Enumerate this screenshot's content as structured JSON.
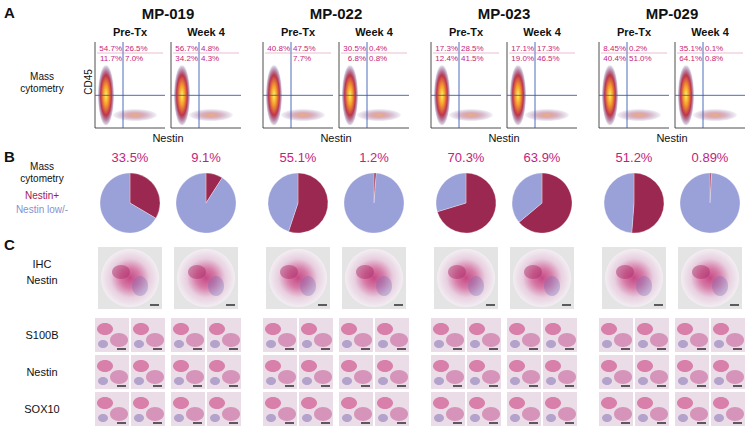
{
  "header": {
    "patients": [
      "MP-019",
      "MP-022",
      "MP-023",
      "MP-029"
    ],
    "timepoints": [
      "Pre-Tx",
      "Week 4"
    ]
  },
  "panel_a": {
    "label": "A",
    "row_label": "Mass\ncytometry",
    "y_axis": "CD45",
    "x_axis": "Nestin",
    "quadrants": [
      [
        [
          "54.7%",
          "26.5%",
          "11.7%",
          "7.0%"
        ],
        [
          "56.7%",
          "4.8%",
          "34.2%",
          "4.3%"
        ]
      ],
      [
        [
          "40.8%",
          "47.5%",
          null,
          "7.7%"
        ],
        [
          "30.5%",
          "0.4%",
          "6.8%",
          "0.8%"
        ]
      ],
      [
        [
          "17.3%",
          "28.5%",
          "12.4%",
          "41.5%"
        ],
        [
          "17.1%",
          "17.3%",
          "19.0%",
          "46.5%"
        ]
      ],
      [
        [
          "8.45%",
          "0.2%",
          "40.4%",
          "51.0%"
        ],
        [
          "35.1%",
          "0.1%",
          "64.1%",
          "0.8%"
        ]
      ]
    ]
  },
  "panel_b": {
    "label": "B",
    "row_label": "Mass\ncytometry",
    "legend": [
      {
        "name": "Nestin+",
        "color": "#a3195b"
      },
      {
        "name": "Nestin low/-",
        "color": "#8a90d0"
      }
    ]
  },
  "chart_data": [
    {
      "type": "pie",
      "title": "33.5%",
      "values": [
        33.5,
        66.5
      ],
      "colors": [
        "#9b2850",
        "#9aa0d8"
      ]
    },
    {
      "type": "pie",
      "title": "9.1%",
      "values": [
        9.1,
        90.9
      ],
      "colors": [
        "#9b2850",
        "#9aa0d8"
      ]
    },
    {
      "type": "pie",
      "title": "55.1%",
      "values": [
        55.1,
        44.9
      ],
      "colors": [
        "#9b2850",
        "#9aa0d8"
      ]
    },
    {
      "type": "pie",
      "title": "1.2%",
      "values": [
        1.2,
        98.8
      ],
      "colors": [
        "#9b2850",
        "#9aa0d8"
      ]
    },
    {
      "type": "pie",
      "title": "70.3%",
      "values": [
        70.3,
        29.7
      ],
      "colors": [
        "#9b2850",
        "#9aa0d8"
      ]
    },
    {
      "type": "pie",
      "title": "63.9%",
      "values": [
        63.9,
        36.1
      ],
      "colors": [
        "#9b2850",
        "#9aa0d8"
      ]
    },
    {
      "type": "pie",
      "title": "51.2%",
      "values": [
        51.2,
        48.8
      ],
      "colors": [
        "#9b2850",
        "#9aa0d8"
      ]
    },
    {
      "type": "pie",
      "title": "0.89%",
      "values": [
        0.89,
        99.11
      ],
      "colors": [
        "#9b2850",
        "#9aa0d8"
      ]
    }
  ],
  "panel_c": {
    "label": "C",
    "core_label": "IHC\nNestin",
    "rows": [
      "S100B",
      "Nestin",
      "SOX10"
    ]
  }
}
